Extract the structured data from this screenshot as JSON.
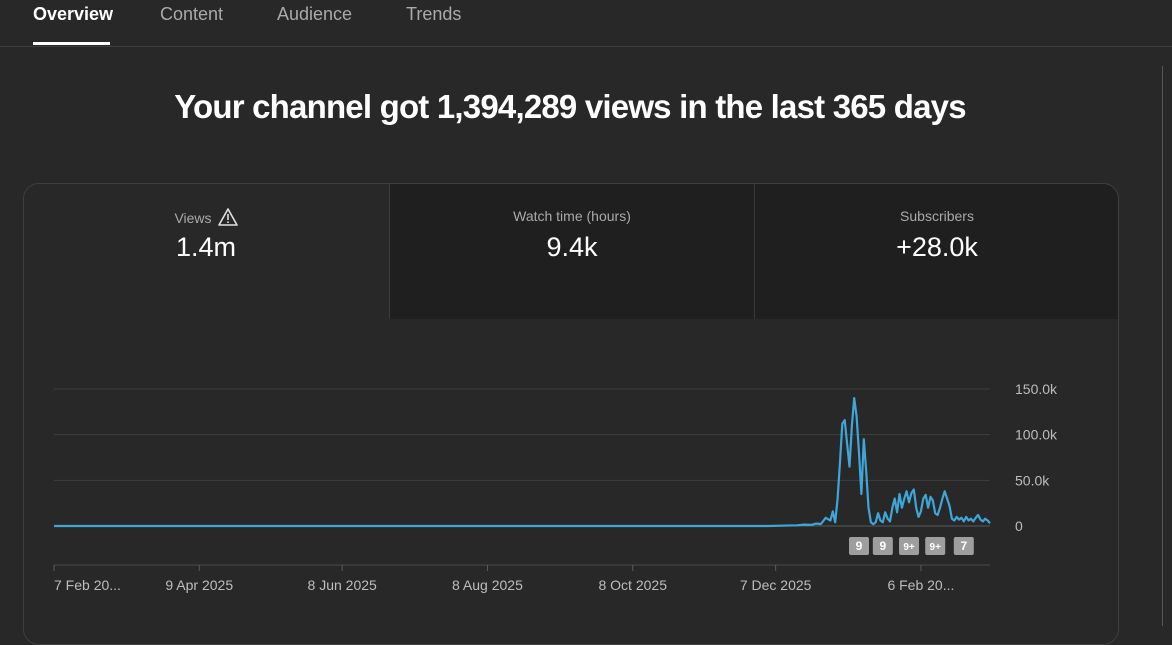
{
  "tabs": [
    {
      "label": "Overview",
      "active": true
    },
    {
      "label": "Content"
    },
    {
      "label": "Audience"
    },
    {
      "label": "Trends"
    }
  ],
  "headline": "Your channel got 1,394,289 views in the last 365 days",
  "metrics": [
    {
      "label": "Views",
      "value": "1.4m",
      "icon": "warning-icon"
    },
    {
      "label": "Watch time (hours)",
      "value": "9.4k"
    },
    {
      "label": "Subscribers",
      "value": "+28.0k"
    }
  ],
  "colors": {
    "line": "#3ea6d8",
    "grid": "#3e3e3e",
    "marker": "#9e9e9e",
    "bg": "#282828"
  },
  "chart_data": {
    "type": "line",
    "series": [
      {
        "name": "Views",
        "values": [
          [
            0,
            0
          ],
          [
            300,
            0
          ],
          [
            312,
            800
          ],
          [
            315,
            1500
          ],
          [
            318,
            1200
          ],
          [
            320,
            2600
          ],
          [
            322,
            2200
          ],
          [
            324,
            9000
          ],
          [
            326,
            6000
          ],
          [
            327,
            16000
          ],
          [
            328,
            4000
          ],
          [
            329,
            30000
          ],
          [
            330,
            70000
          ],
          [
            331,
            112000
          ],
          [
            332,
            116000
          ],
          [
            333,
            90000
          ],
          [
            334,
            65000
          ],
          [
            335,
            110000
          ],
          [
            336,
            140000
          ],
          [
            337,
            120000
          ],
          [
            338,
            80000
          ],
          [
            339,
            35000
          ],
          [
            340,
            95000
          ],
          [
            341,
            60000
          ],
          [
            342,
            20000
          ],
          [
            343,
            4000
          ],
          [
            344,
            2000
          ],
          [
            345,
            4000
          ],
          [
            346,
            14000
          ],
          [
            347,
            6000
          ],
          [
            348,
            4000
          ],
          [
            349,
            15000
          ],
          [
            350,
            8000
          ],
          [
            351,
            5000
          ],
          [
            352,
            20000
          ],
          [
            353,
            30000
          ],
          [
            354,
            15000
          ],
          [
            355,
            35000
          ],
          [
            356,
            20000
          ],
          [
            357,
            30000
          ],
          [
            358,
            38000
          ],
          [
            359,
            26000
          ],
          [
            360,
            36000
          ],
          [
            361,
            40000
          ],
          [
            362,
            20000
          ],
          [
            363,
            10000
          ],
          [
            364,
            16000
          ],
          [
            365,
            30000
          ],
          [
            366,
            34000
          ],
          [
            367,
            20000
          ],
          [
            368,
            32000
          ],
          [
            369,
            28000
          ],
          [
            370,
            14000
          ],
          [
            371,
            12000
          ],
          [
            372,
            20000
          ],
          [
            373,
            30000
          ],
          [
            374,
            38000
          ],
          [
            375,
            30000
          ],
          [
            376,
            22000
          ],
          [
            377,
            8000
          ],
          [
            378,
            6000
          ],
          [
            379,
            10000
          ],
          [
            380,
            7000
          ],
          [
            381,
            9000
          ],
          [
            382,
            5000
          ],
          [
            383,
            10000
          ],
          [
            384,
            6000
          ],
          [
            385,
            8000
          ],
          [
            386,
            5000
          ],
          [
            387,
            9000
          ],
          [
            388,
            12000
          ],
          [
            389,
            7000
          ],
          [
            390,
            5000
          ],
          [
            391,
            8000
          ],
          [
            392,
            6000
          ],
          [
            393,
            3000
          ]
        ]
      }
    ],
    "x_ticks": [
      {
        "d": 0,
        "label": "7 Feb 20..."
      },
      {
        "d": 61,
        "label": "9 Apr 2025"
      },
      {
        "d": 121,
        "label": "8 Jun 2025"
      },
      {
        "d": 182,
        "label": "8 Aug 2025"
      },
      {
        "d": 243,
        "label": "8 Oct 2025"
      },
      {
        "d": 303,
        "label": "7 Dec 2025"
      },
      {
        "d": 364,
        "label": "6 Feb 20..."
      }
    ],
    "xlim": [
      0,
      393
    ],
    "ylim": [
      0,
      150000
    ],
    "y_ticks": [
      {
        "v": 0,
        "label": "0"
      },
      {
        "v": 50000,
        "label": "50.0k"
      },
      {
        "v": 100000,
        "label": "100.0k"
      },
      {
        "v": 150000,
        "label": "150.0k"
      }
    ],
    "markers": [
      {
        "d": 338,
        "label": "9"
      },
      {
        "d": 348,
        "label": "9"
      },
      {
        "d": 359,
        "label": "9+"
      },
      {
        "d": 370,
        "label": "9+"
      },
      {
        "d": 382,
        "label": "7"
      }
    ],
    "grid": true
  }
}
